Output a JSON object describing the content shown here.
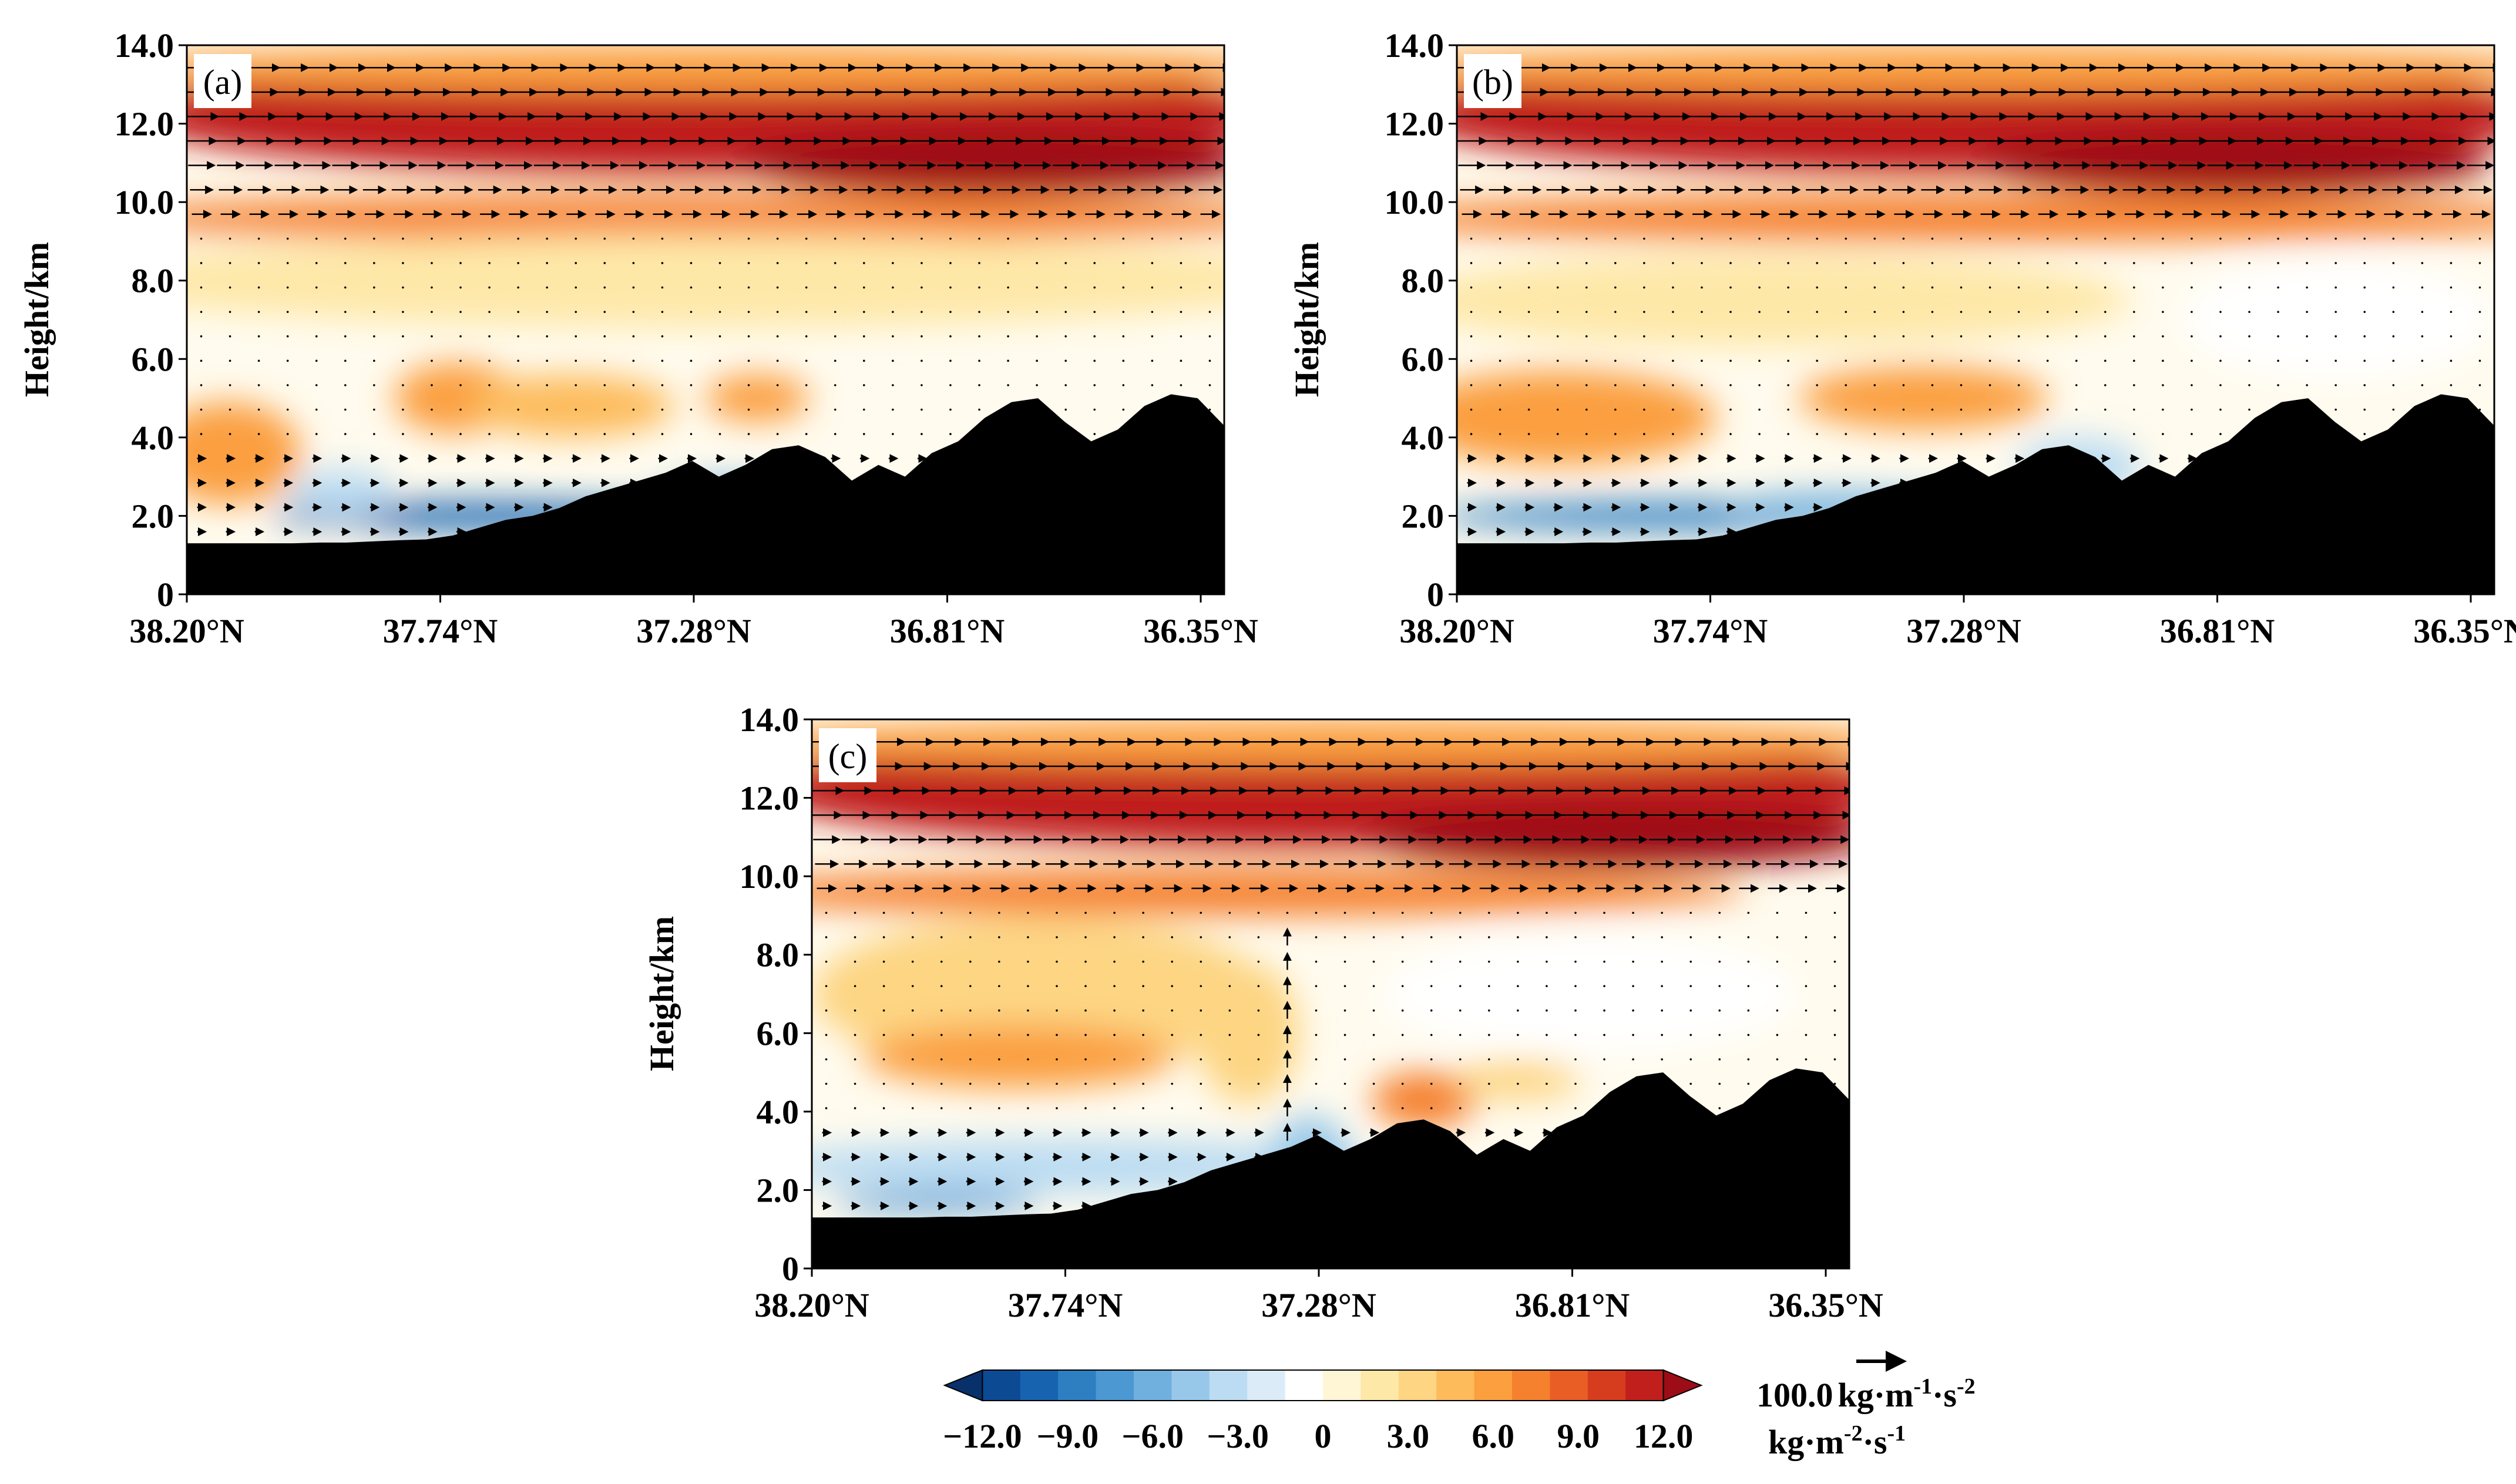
{
  "chart_data": [
    {
      "panel_label": "(a)",
      "type": "heatmap",
      "ylabel": "Height/km",
      "xlabel": "",
      "ylim": [
        0,
        14
      ],
      "y_ticks": [
        "14.0",
        "12.0",
        "10.0",
        "8.0",
        "6.0",
        "4.0",
        "2.0",
        "0"
      ],
      "x_ticks": [
        "38.20°N",
        "37.74°N",
        "37.28°N",
        "36.81°N",
        "36.35°N"
      ],
      "terrain_km": [
        1.3,
        1.3,
        1.3,
        1.3,
        1.3,
        1.32,
        1.32,
        1.35,
        1.38,
        1.4,
        1.5,
        1.7,
        1.9,
        2.0,
        2.2,
        2.5,
        2.7,
        2.9,
        3.1,
        3.4,
        3.0,
        3.3,
        3.7,
        3.8,
        3.5,
        2.9,
        3.3,
        3.0,
        3.6,
        3.9,
        4.5,
        4.9,
        5.0,
        4.4,
        3.9,
        4.2,
        4.8,
        5.1,
        5.0,
        4.3
      ],
      "blobs": [
        {
          "x": 0.5,
          "y": 12.2,
          "rx": 0.55,
          "ry": 1.5,
          "v": 10.5
        },
        {
          "x": 0.78,
          "y": 11.0,
          "rx": 0.25,
          "ry": 0.8,
          "v": 11.8
        },
        {
          "x": 0.5,
          "y": 13.4,
          "rx": 0.6,
          "ry": 0.6,
          "v": 5.5
        },
        {
          "x": 0.5,
          "y": 9.6,
          "rx": 0.6,
          "ry": 0.6,
          "v": 6.5
        },
        {
          "x": 0.5,
          "y": 8.0,
          "rx": 0.6,
          "ry": 1.2,
          "v": 1.8
        },
        {
          "x": 0.04,
          "y": 3.6,
          "rx": 0.07,
          "ry": 1.3,
          "v": 5.5
        },
        {
          "x": 0.26,
          "y": 5.0,
          "rx": 0.06,
          "ry": 0.9,
          "v": 5.5
        },
        {
          "x": 0.37,
          "y": 4.8,
          "rx": 0.1,
          "ry": 0.8,
          "v": 4.5
        },
        {
          "x": 0.55,
          "y": 5.0,
          "rx": 0.05,
          "ry": 0.6,
          "v": 5.5
        },
        {
          "x": 0.3,
          "y": 2.0,
          "rx": 0.22,
          "ry": 0.35,
          "v": -9.0
        },
        {
          "x": 0.53,
          "y": 2.4,
          "rx": 0.08,
          "ry": 0.5,
          "v": -6.0
        },
        {
          "x": 0.15,
          "y": 2.6,
          "rx": 0.05,
          "ry": 0.6,
          "v": -3.0
        }
      ],
      "wind_vectors": "horizontal eastward arrows aloft, weaker near surface"
    },
    {
      "panel_label": "(b)",
      "type": "heatmap",
      "ylabel": "Height/km",
      "xlabel": "",
      "ylim": [
        0,
        14
      ],
      "y_ticks": [
        "14.0",
        "12.0",
        "10.0",
        "8.0",
        "6.0",
        "4.0",
        "2.0",
        "0"
      ],
      "x_ticks": [
        "38.20°N",
        "37.74°N",
        "37.28°N",
        "36.81°N",
        "36.35°N"
      ],
      "terrain_km": [
        1.3,
        1.3,
        1.3,
        1.3,
        1.3,
        1.32,
        1.32,
        1.35,
        1.38,
        1.4,
        1.5,
        1.7,
        1.9,
        2.0,
        2.2,
        2.5,
        2.7,
        2.9,
        3.1,
        3.4,
        3.0,
        3.3,
        3.7,
        3.8,
        3.5,
        2.9,
        3.3,
        3.0,
        3.6,
        3.9,
        4.5,
        4.9,
        5.0,
        4.4,
        3.9,
        4.2,
        4.8,
        5.1,
        5.0,
        4.3
      ],
      "blobs": [
        {
          "x": 0.5,
          "y": 12.2,
          "rx": 0.55,
          "ry": 1.5,
          "v": 10.5
        },
        {
          "x": 0.75,
          "y": 11.0,
          "rx": 0.25,
          "ry": 0.8,
          "v": 11.8
        },
        {
          "x": 0.5,
          "y": 13.4,
          "rx": 0.6,
          "ry": 0.6,
          "v": 5.5
        },
        {
          "x": 0.5,
          "y": 9.6,
          "rx": 0.6,
          "ry": 0.6,
          "v": 6.5
        },
        {
          "x": 0.3,
          "y": 7.5,
          "rx": 0.35,
          "ry": 1.2,
          "v": 1.5
        },
        {
          "x": 0.1,
          "y": 4.5,
          "rx": 0.15,
          "ry": 1.2,
          "v": 5.0
        },
        {
          "x": 0.45,
          "y": 5.0,
          "rx": 0.12,
          "ry": 0.8,
          "v": 5.5
        },
        {
          "x": 0.85,
          "y": 7.0,
          "rx": 0.15,
          "ry": 1.5,
          "v": -0.5
        },
        {
          "x": 0.2,
          "y": 2.0,
          "rx": 0.22,
          "ry": 0.35,
          "v": -8.0
        },
        {
          "x": 0.38,
          "y": 2.2,
          "rx": 0.12,
          "ry": 0.4,
          "v": -5.0
        },
        {
          "x": 0.6,
          "y": 3.2,
          "rx": 0.06,
          "ry": 0.8,
          "v": -3.0
        }
      ],
      "wind_vectors": "horizontal eastward arrows aloft, weaker near surface"
    },
    {
      "panel_label": "(c)",
      "type": "heatmap",
      "ylabel": "Height/km",
      "xlabel": "",
      "ylim": [
        0,
        14
      ],
      "y_ticks": [
        "14.0",
        "12.0",
        "10.0",
        "8.0",
        "6.0",
        "4.0",
        "2.0",
        "0"
      ],
      "x_ticks": [
        "38.20°N",
        "37.74°N",
        "37.28°N",
        "36.81°N",
        "36.35°N"
      ],
      "terrain_km": [
        1.3,
        1.3,
        1.3,
        1.3,
        1.3,
        1.32,
        1.32,
        1.35,
        1.38,
        1.4,
        1.5,
        1.7,
        1.9,
        2.0,
        2.2,
        2.5,
        2.7,
        2.9,
        3.1,
        3.4,
        3.0,
        3.3,
        3.7,
        3.8,
        3.5,
        2.9,
        3.3,
        3.0,
        3.6,
        3.9,
        4.5,
        4.9,
        5.0,
        4.4,
        3.9,
        4.2,
        4.8,
        5.1,
        5.0,
        4.3
      ],
      "blobs": [
        {
          "x": 0.5,
          "y": 12.2,
          "rx": 0.55,
          "ry": 1.5,
          "v": 10.5
        },
        {
          "x": 0.78,
          "y": 11.0,
          "rx": 0.25,
          "ry": 0.8,
          "v": 11.8
        },
        {
          "x": 0.5,
          "y": 13.4,
          "rx": 0.6,
          "ry": 0.6,
          "v": 5.5
        },
        {
          "x": 0.4,
          "y": 9.6,
          "rx": 0.5,
          "ry": 0.6,
          "v": 6.5
        },
        {
          "x": 0.22,
          "y": 7.0,
          "rx": 0.22,
          "ry": 2.0,
          "v": 3.5
        },
        {
          "x": 0.2,
          "y": 5.4,
          "rx": 0.15,
          "ry": 0.8,
          "v": 5.5
        },
        {
          "x": 0.42,
          "y": 6.0,
          "rx": 0.05,
          "ry": 1.8,
          "v": 2.5
        },
        {
          "x": 0.59,
          "y": 4.3,
          "rx": 0.05,
          "ry": 0.7,
          "v": 6.0
        },
        {
          "x": 0.68,
          "y": 4.8,
          "rx": 0.06,
          "ry": 0.5,
          "v": 3.0
        },
        {
          "x": 0.75,
          "y": 7.0,
          "rx": 0.2,
          "ry": 1.5,
          "v": -0.6
        },
        {
          "x": 0.25,
          "y": 2.6,
          "rx": 0.3,
          "ry": 0.7,
          "v": -2.5
        },
        {
          "x": 0.12,
          "y": 1.7,
          "rx": 0.1,
          "ry": 0.25,
          "v": -7.0
        },
        {
          "x": 0.48,
          "y": 2.6,
          "rx": 0.04,
          "ry": 1.3,
          "v": -4.5
        }
      ],
      "wind_vectors": "horizontal eastward arrows aloft, vertical upward arrows near 37.2°N"
    }
  ],
  "colorbar": {
    "min": -12.0,
    "max": 12.0,
    "tick_labels": [
      "−12.0",
      "−9.0",
      "−6.0",
      "−3.0",
      "0",
      "3.0",
      "6.0",
      "9.0",
      "12.0"
    ],
    "unit": "kg·m",
    "unit_exp1": "-2",
    "unit_mid": "·s",
    "unit_exp2": "-1",
    "colors": [
      "#08306b",
      "#0c4a94",
      "#1763b0",
      "#2e7fc2",
      "#4b98d2",
      "#6fb0df",
      "#97c8ea",
      "#bbdcf2",
      "#dcebf8",
      "#ffffff",
      "#fff6d5",
      "#fee8a8",
      "#fdd583",
      "#fdbb5c",
      "#fb9f3f",
      "#f5802e",
      "#e95e25",
      "#d63d1f",
      "#c01f1c",
      "#9c0d17"
    ]
  },
  "vector_key": {
    "label": "100.0",
    "unit": "kg·m",
    "unit_exp1": "-1",
    "unit_mid": "·s",
    "unit_exp2": "-2"
  }
}
